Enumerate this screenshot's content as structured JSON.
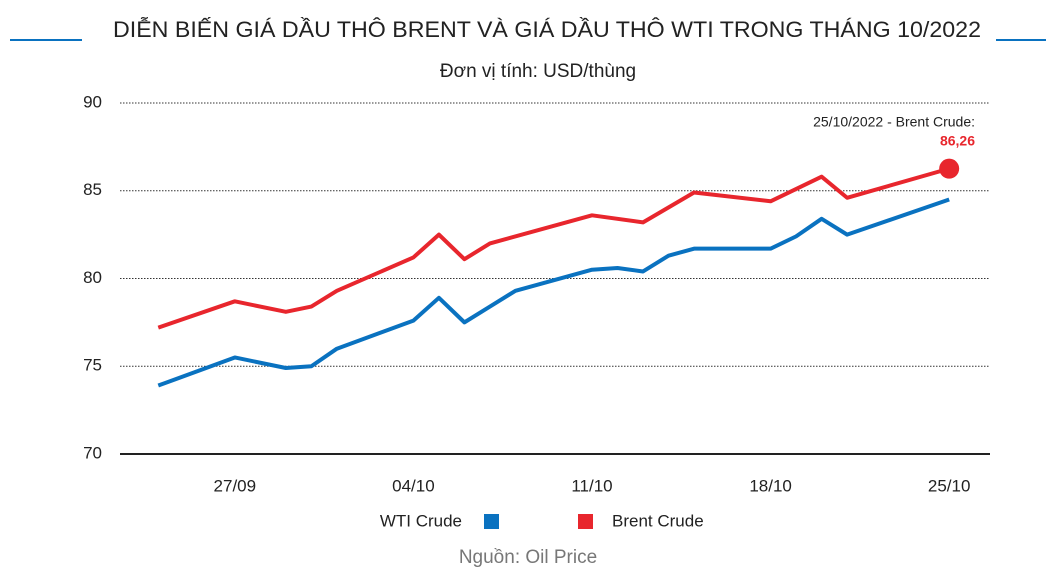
{
  "chart_data": {
    "type": "line",
    "title": "DIỄN BIẾN GIÁ DẦU THÔ BRENT VÀ GIÁ DẦU THÔ WTI TRONG THÁNG 10/2022",
    "subtitle": "Đơn vị tính: USD/thùng",
    "source": "Nguồn: Oil Price",
    "xlim": [
      -1.5,
      32.6
    ],
    "xticks": [
      {
        "value": 3,
        "label": "27/09"
      },
      {
        "value": 10,
        "label": "04/10"
      },
      {
        "value": 17,
        "label": "11/10"
      },
      {
        "value": 24,
        "label": "18/10"
      },
      {
        "value": 31,
        "label": "25/10"
      }
    ],
    "ylim": [
      70,
      90
    ],
    "yticks": [
      70,
      75,
      80,
      85,
      90
    ],
    "grid": true,
    "series": [
      {
        "name": "WTI Crude",
        "color": "#0a72c0",
        "x": [
          0,
          3,
          4,
          5,
          6,
          7,
          10,
          11,
          12,
          13,
          14,
          17,
          18,
          19,
          20,
          21,
          24,
          25,
          26,
          27,
          31
        ],
        "values": [
          73.9,
          75.5,
          75.2,
          74.9,
          75.0,
          76.0,
          77.6,
          78.9,
          77.5,
          78.4,
          79.3,
          80.5,
          80.6,
          80.4,
          81.3,
          81.7,
          81.7,
          82.4,
          83.4,
          82.5,
          84.5
        ]
      },
      {
        "name": "Brent Crude",
        "color": "#e8262d",
        "x": [
          0,
          3,
          5,
          6,
          7,
          10,
          11,
          12,
          13,
          17,
          19,
          21,
          24,
          26,
          27,
          31
        ],
        "values": [
          77.2,
          78.7,
          78.1,
          78.4,
          79.3,
          81.2,
          82.5,
          81.1,
          82.0,
          83.6,
          83.2,
          84.9,
          84.4,
          85.8,
          84.6,
          86.26
        ]
      }
    ],
    "annotation": {
      "text": "25/10/2022 - Brent Crude:",
      "label": "86,26"
    }
  }
}
